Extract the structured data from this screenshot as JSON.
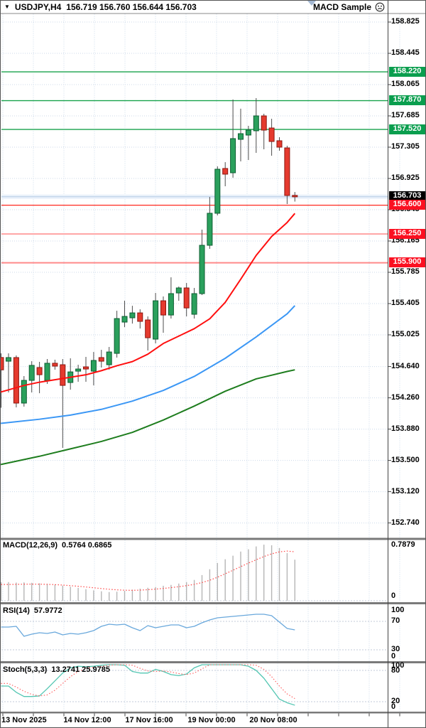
{
  "window": {
    "symbol_period": "USDJPY,H4",
    "ohlc": "156.719 156.760 156.644 156.703",
    "ea_name": "MACD Sample"
  },
  "colors": {
    "bull": "#2aa05c",
    "bull_border": "#0e5e32",
    "bear": "#e53a2e",
    "bear_border": "#8d1710",
    "wick": "#4d4d4d",
    "grid": "#ccd9ea",
    "level_dotted": "#c3cbd9",
    "separator": "#7a7a7a",
    "axis_line": "#444444",
    "macd_bar": "#b6b6b6",
    "macd_signal": "#ff4545",
    "rsi_line": "#69a8dc",
    "stoch_main": "#53c6b2",
    "stoch_signal": "#ff5a5a",
    "ma_fast": "#ff0f0f",
    "ma_mid": "#3b97f5",
    "ma_slow": "#1e7d1e",
    "marker_triangle": "#a4b8d2"
  },
  "chart_data": {
    "panels": [
      {
        "id": "price",
        "type": "candlestick",
        "symbol": "USDJPY",
        "timeframe": "H4",
        "last_ohlc": {
          "open": 156.719,
          "high": 156.76,
          "low": 156.644,
          "close": 156.703
        },
        "y_ticks": [
          "158.825",
          "158.445",
          "158.065",
          "157.685",
          "157.305",
          "156.925",
          "156.545",
          "156.165",
          "155.785",
          "155.405",
          "155.025",
          "154.640",
          "154.260",
          "153.880",
          "153.500",
          "153.120",
          "152.740"
        ],
        "time_labels": [
          "13 Nov 2025",
          "14 Nov 12:00",
          "17 Nov 16:00",
          "19 Nov 00:00",
          "20 Nov 08:00"
        ],
        "levels": [
          {
            "label": "158.220",
            "value": 158.22,
            "role": "resistance",
            "line_color": "#18a24c",
            "line_width": 1.4,
            "badge_color": "#0a9e4e"
          },
          {
            "label": "157.870",
            "value": 157.87,
            "role": "resistance",
            "line_color": "#18a24c",
            "line_width": 1.4,
            "badge_color": "#0a9e4e"
          },
          {
            "label": "157.520",
            "value": 157.52,
            "role": "resistance",
            "line_color": "#18a24c",
            "line_width": 1.4,
            "badge_color": "#0a9e4e"
          },
          {
            "label": "156.703",
            "value": 156.703,
            "role": "current-price",
            "line_color": "#bdd0e7",
            "line_width": 1.2,
            "badge_color": "#000000"
          },
          {
            "label": "156.600",
            "value": 156.6,
            "role": "support",
            "line_color": "#ff2a20",
            "line_width": 1.3,
            "badge_color": "#fb1021"
          },
          {
            "label": "156.250",
            "value": 156.25,
            "role": "support",
            "line_color": "#ffa3a3",
            "line_width": 2,
            "badge_color": "#fb1021"
          },
          {
            "label": "155.900",
            "value": 155.9,
            "role": "support",
            "line_color": "#ff8a8a",
            "line_width": 2,
            "badge_color": "#fb1021"
          }
        ],
        "partial_first_candle": [
          154.75,
          154.8,
          154.14,
          154.6
        ],
        "candles": [
          [
            154.705,
            154.8,
            154.325,
            154.749
          ],
          [
            154.749,
            154.775,
            154.144,
            154.196
          ],
          [
            154.196,
            154.524,
            154.153,
            154.472
          ],
          [
            154.472,
            154.705,
            154.325,
            154.654
          ],
          [
            154.628,
            154.697,
            154.316,
            154.541
          ],
          [
            154.472,
            154.731,
            154.429,
            154.68
          ],
          [
            154.68,
            154.723,
            154.602,
            154.645
          ],
          [
            154.662,
            154.731,
            153.652,
            154.411
          ],
          [
            154.446,
            154.74,
            154.359,
            154.575
          ],
          [
            154.584,
            154.662,
            154.455,
            154.61
          ],
          [
            154.636,
            154.757,
            154.455,
            154.61
          ],
          [
            154.584,
            154.817,
            154.411,
            154.714
          ],
          [
            154.749,
            154.843,
            154.628,
            154.705
          ],
          [
            154.662,
            154.878,
            154.602,
            154.817
          ],
          [
            154.8,
            155.318,
            154.749,
            155.223
          ],
          [
            155.18,
            155.439,
            155.119,
            155.249
          ],
          [
            155.232,
            155.378,
            155.162,
            155.292
          ],
          [
            155.292,
            155.335,
            155.102,
            155.189
          ],
          [
            155.206,
            155.249,
            154.835,
            154.99
          ],
          [
            154.973,
            155.534,
            154.921,
            155.439
          ],
          [
            155.439,
            155.491,
            155.05,
            155.266
          ],
          [
            155.266,
            155.724,
            155.223,
            155.526
          ],
          [
            155.534,
            155.612,
            155.439,
            155.595
          ],
          [
            155.595,
            155.655,
            155.249,
            155.352
          ],
          [
            155.275,
            155.595,
            155.223,
            155.526
          ],
          [
            155.526,
            156.303,
            155.509,
            156.113
          ],
          [
            156.113,
            156.7,
            156.07,
            156.502
          ],
          [
            156.502,
            157.072,
            156.476,
            157.037
          ],
          [
            157.046,
            157.123,
            156.83,
            156.977
          ],
          [
            156.994,
            157.884,
            156.934,
            157.409
          ],
          [
            157.4,
            157.772,
            157.132,
            157.469
          ],
          [
            157.452,
            157.564,
            157.149,
            157.512
          ],
          [
            157.504,
            157.901,
            157.236,
            157.685
          ],
          [
            157.685,
            157.711,
            157.279,
            157.512
          ],
          [
            157.538,
            157.65,
            157.201,
            157.374
          ],
          [
            157.383,
            157.426,
            157.262,
            157.305
          ],
          [
            157.296,
            157.322,
            156.614,
            156.718
          ],
          [
            156.719,
            156.76,
            156.644,
            156.703
          ]
        ],
        "moving_averages": [
          {
            "name": "ma-fast-red",
            "color": "#ff0f0f",
            "points": [
              [
                -1,
                154.33
              ],
              [
                2,
                154.41
              ],
              [
                4,
                154.45
              ],
              [
                6,
                154.48
              ],
              [
                8,
                154.51
              ],
              [
                10,
                154.54
              ],
              [
                12,
                154.59
              ],
              [
                14,
                154.65
              ],
              [
                16,
                154.7
              ],
              [
                18,
                154.79
              ],
              [
                20,
                154.92
              ],
              [
                22,
                155.01
              ],
              [
                24,
                155.1
              ],
              [
                26,
                155.22
              ],
              [
                28,
                155.42
              ],
              [
                30,
                155.7
              ],
              [
                32,
                155.99
              ],
              [
                34,
                156.22
              ],
              [
                36,
                156.39
              ],
              [
                37,
                156.5
              ]
            ]
          },
          {
            "name": "ma-mid-blue",
            "color": "#3b97f5",
            "points": [
              [
                -1,
                153.95
              ],
              [
                4,
                154.0
              ],
              [
                8,
                154.05
              ],
              [
                12,
                154.12
              ],
              [
                16,
                154.22
              ],
              [
                20,
                154.35
              ],
              [
                24,
                154.52
              ],
              [
                28,
                154.74
              ],
              [
                32,
                155.0
              ],
              [
                36,
                155.28
              ],
              [
                37,
                155.38
              ]
            ]
          },
          {
            "name": "ma-slow-green",
            "color": "#1e7d1e",
            "points": [
              [
                -1,
                153.45
              ],
              [
                4,
                153.55
              ],
              [
                8,
                153.64
              ],
              [
                12,
                153.73
              ],
              [
                16,
                153.84
              ],
              [
                20,
                153.99
              ],
              [
                24,
                154.16
              ],
              [
                28,
                154.34
              ],
              [
                32,
                154.49
              ],
              [
                36,
                154.58
              ],
              [
                37,
                154.6
              ]
            ]
          }
        ]
      },
      {
        "id": "macd",
        "type": "bar",
        "label": "MACD(12,26,9)",
        "values_text": "0.5764 0.6865",
        "axis_labels": [
          "0.7879",
          "0"
        ],
        "current_macd": 0.5764,
        "current_signal": 0.6865,
        "histogram": [
          0.262,
          0.255,
          0.258,
          0.252,
          0.245,
          0.238,
          0.226,
          0.213,
          0.196,
          0.18,
          0.163,
          0.146,
          0.133,
          0.122,
          0.127,
          0.14,
          0.156,
          0.17,
          0.182,
          0.193,
          0.21,
          0.222,
          0.241,
          0.262,
          0.292,
          0.36,
          0.442,
          0.53,
          0.582,
          0.632,
          0.69,
          0.722,
          0.762,
          0.787,
          0.778,
          0.74,
          0.668,
          0.5764
        ],
        "signal": [
          0.228,
          0.23,
          0.232,
          0.233,
          0.232,
          0.23,
          0.226,
          0.22,
          0.212,
          0.203,
          0.193,
          0.182,
          0.171,
          0.161,
          0.153,
          0.148,
          0.146,
          0.149,
          0.155,
          0.163,
          0.173,
          0.184,
          0.197,
          0.212,
          0.23,
          0.255,
          0.288,
          0.33,
          0.378,
          0.428,
          0.478,
          0.528,
          0.575,
          0.62,
          0.658,
          0.686,
          0.697,
          0.6865
        ]
      },
      {
        "id": "rsi",
        "type": "line",
        "label": "RSI(14)",
        "values_text": "57.9772",
        "axis_labels": [
          "100",
          "70",
          "30",
          "0"
        ],
        "levels": [
          70,
          30
        ],
        "current": 57.9772,
        "values": [
          62,
          63,
          49,
          52,
          54,
          53,
          55,
          51,
          53,
          52,
          54,
          57,
          63,
          66,
          65,
          66,
          61,
          57,
          64,
          61,
          63,
          65,
          65,
          61,
          63,
          68,
          72,
          75,
          76,
          77,
          78,
          79,
          80,
          80,
          78,
          69,
          60,
          57.98
        ]
      },
      {
        "id": "stoch",
        "type": "line",
        "label": "Stoch(5,3,3)",
        "values_text": "13.2741 25.9785",
        "axis_labels": [
          "100",
          "80",
          "20",
          "0"
        ],
        "levels": [
          80,
          20
        ],
        "current_main": 13.2741,
        "current_signal": 25.9785,
        "main": [
          50,
          38,
          30,
          30,
          31,
          45,
          60,
          75,
          85,
          88,
          87,
          88,
          90,
          93,
          96,
          90,
          78,
          75,
          75,
          82,
          78,
          72,
          70,
          73,
          85,
          95,
          98,
          100,
          97,
          95,
          92,
          88,
          80,
          65,
          45,
          25,
          18,
          13.27
        ],
        "signal": [
          55,
          48,
          40,
          34,
          31,
          33,
          42,
          55,
          68,
          78,
          84,
          86,
          88,
          90,
          92,
          93,
          90,
          84,
          79,
          78,
          79,
          77,
          74,
          72,
          75,
          83,
          91,
          96,
          98,
          98,
          96,
          94,
          90,
          82,
          68,
          50,
          35,
          25.98
        ]
      }
    ]
  }
}
